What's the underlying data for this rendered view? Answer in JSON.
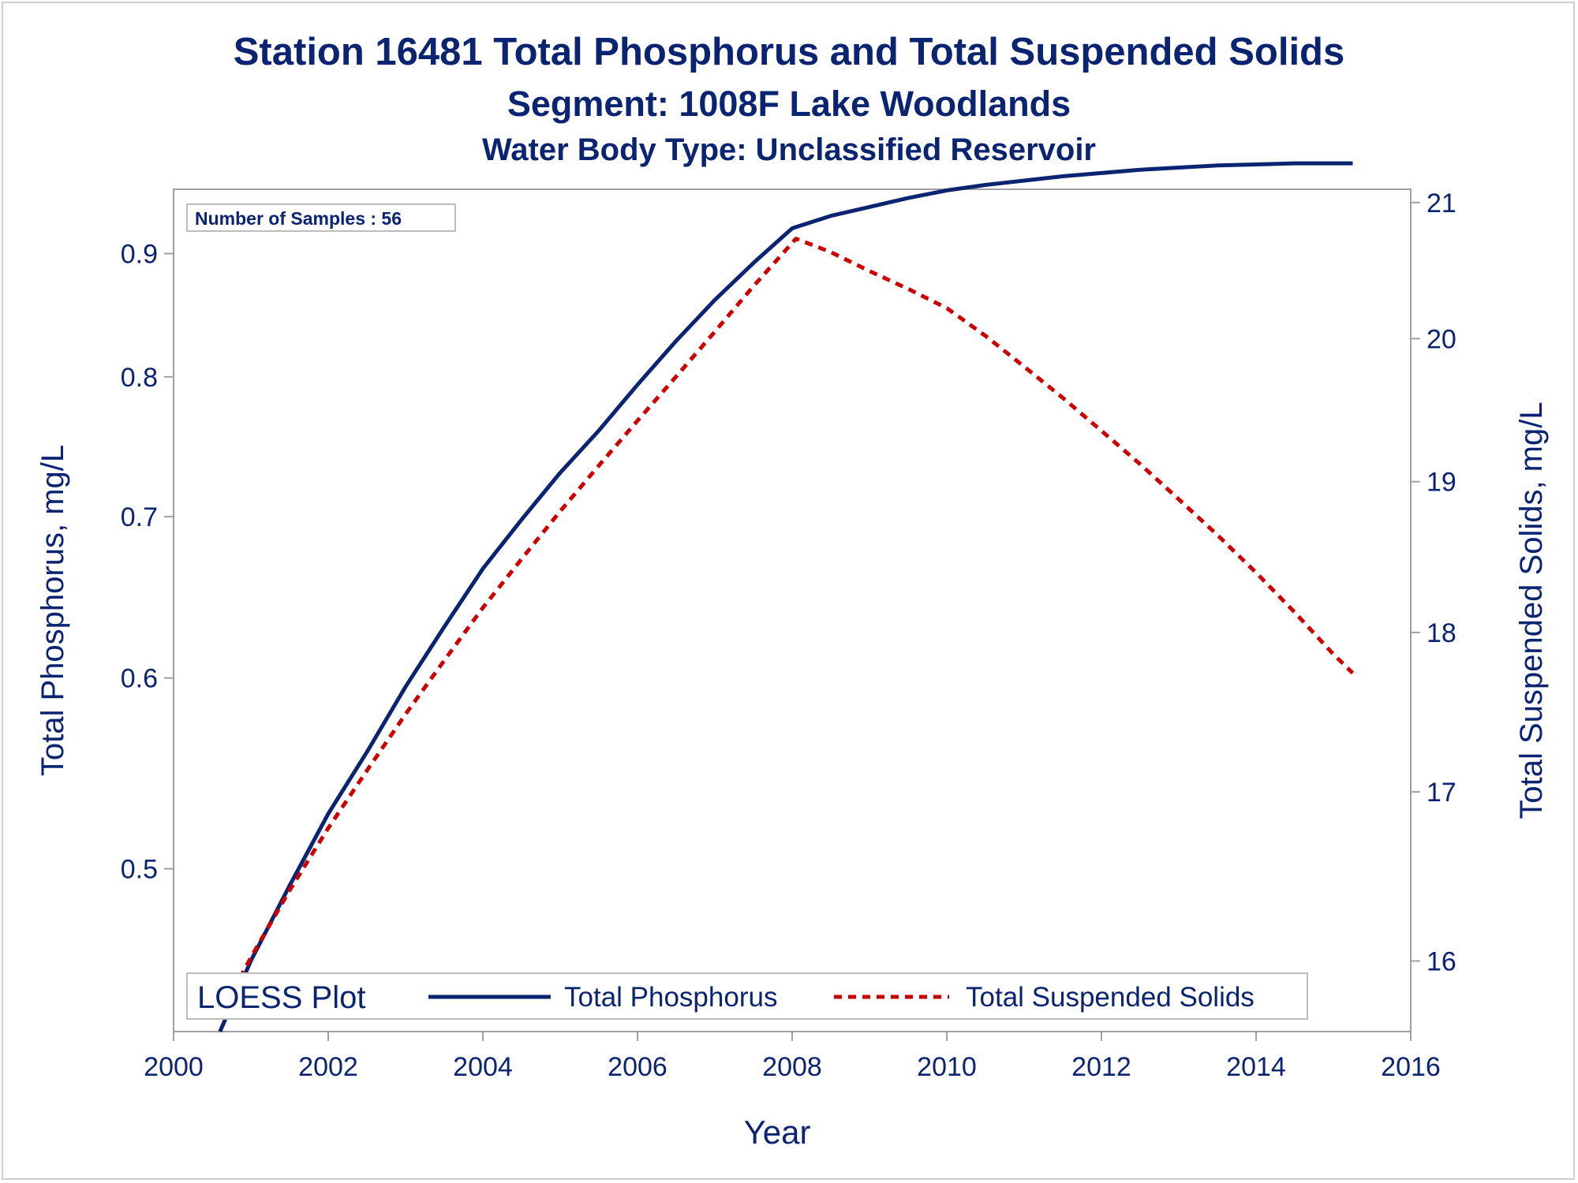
{
  "chart_data": {
    "type": "line",
    "title": "Station 16481  Total Phosphorus and Total Suspended Solids",
    "subtitle": "Segment: 1008F  Lake Woodlands",
    "subtitle2": "Water Body Type: Unclassified Reservoir",
    "xlabel": "Year",
    "ylabel_left": "Total Phosphorus, mg/L",
    "ylabel_right": "Total Suspended Solids, mg/L",
    "x_ticks": [
      2000,
      2002,
      2004,
      2006,
      2008,
      2010,
      2012,
      2014,
      2016
    ],
    "y_left_ticks": [
      0.5,
      0.6,
      0.7,
      0.8,
      0.9
    ],
    "y_right_ticks": [
      16,
      17,
      18,
      19,
      20,
      21
    ],
    "y_left_scale": "log",
    "y_right_scale": "log",
    "xlim": [
      2000,
      2016
    ],
    "ylim_left": [
      0.428,
      0.957
    ],
    "ylim_right": [
      15.6,
      21.1
    ],
    "grid": false,
    "inset_label": "Number of Samples : 56",
    "legend": {
      "placement": "bottom-left inside",
      "title": "LOESS Plot",
      "entries": [
        "Total Phosphorus",
        "Total Suspended Solids"
      ]
    },
    "series": [
      {
        "name": "Total Phosphorus",
        "axis": "left",
        "color": "#0a2472",
        "style": "solid",
        "x": [
          2000.6,
          2001.0,
          2001.5,
          2002.0,
          2002.5,
          2003.0,
          2003.5,
          2004.0,
          2004.5,
          2005.0,
          2005.5,
          2006.0,
          2006.5,
          2007.0,
          2007.5,
          2008.0,
          2008.5,
          2009.0,
          2009.5,
          2010.0,
          2010.5,
          2011.0,
          2011.5,
          2012.0,
          2012.5,
          2013.0,
          2013.5,
          2014.0,
          2014.5,
          2015.0,
          2015.25
        ],
        "values": [
          0.428,
          0.458,
          0.492,
          0.527,
          0.559,
          0.595,
          0.63,
          0.666,
          0.698,
          0.73,
          0.76,
          0.794,
          0.828,
          0.861,
          0.892,
          0.922,
          0.933,
          0.941,
          0.949,
          0.956,
          0.961,
          0.965,
          0.969,
          0.972,
          0.975,
          0.977,
          0.979,
          0.98,
          0.981,
          0.981,
          0.981
        ]
      },
      {
        "name": "Total Suspended Solids",
        "axis": "right",
        "color": "#cc0000",
        "style": "dashed",
        "x": [
          2000.6,
          2001.0,
          2001.5,
          2002.0,
          2002.5,
          2003.0,
          2003.5,
          2004.0,
          2004.5,
          2005.0,
          2005.5,
          2006.0,
          2006.5,
          2007.0,
          2007.5,
          2008.05,
          2008.5,
          2009.0,
          2009.5,
          2010.0,
          2010.5,
          2011.0,
          2011.5,
          2012.0,
          2012.5,
          2013.0,
          2013.5,
          2014.0,
          2014.5,
          2015.0,
          2015.25
        ],
        "values": [
          15.69,
          16.02,
          16.41,
          16.78,
          17.13,
          17.48,
          17.82,
          18.16,
          18.48,
          18.8,
          19.11,
          19.42,
          19.73,
          20.05,
          20.38,
          20.73,
          20.63,
          20.49,
          20.36,
          20.22,
          20.02,
          19.8,
          19.58,
          19.35,
          19.12,
          18.88,
          18.64,
          18.39,
          18.13,
          17.86,
          17.74
        ]
      }
    ]
  }
}
